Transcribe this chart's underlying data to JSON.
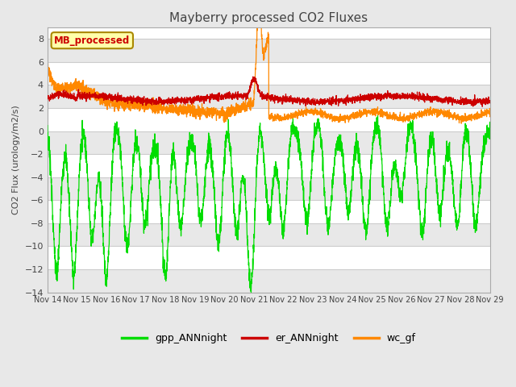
{
  "title": "Mayberry processed CO2 Fluxes",
  "ylabel": "CO2 Flux (urology/m2/s)",
  "ylim": [
    -14,
    9
  ],
  "yticks": [
    -14,
    -12,
    -10,
    -8,
    -6,
    -4,
    -2,
    0,
    2,
    4,
    6,
    8
  ],
  "x_tick_labels": [
    "Nov 14",
    "Nov 15",
    "Nov 16",
    "Nov 17",
    "Nov 18",
    "Nov 19",
    "Nov 20",
    "Nov 21",
    "Nov 22",
    "Nov 23",
    "Nov 24",
    "Nov 25",
    "Nov 26",
    "Nov 27",
    "Nov 28",
    "Nov 29"
  ],
  "colors": {
    "gpp": "#00dd00",
    "er": "#cc0000",
    "wc": "#ff8800"
  },
  "legend_text": {
    "gpp": "gpp_ANNnight",
    "er": "er_ANNnight",
    "wc": "wc_gf"
  },
  "annotation_text": "MB_processed",
  "annotation_color": "#cc0000",
  "annotation_bg": "#ffffaa",
  "annotation_border": "#aa8800",
  "background_color": "#e8e8e8",
  "plot_bg": "#ffffff",
  "grid_color": "#cccccc",
  "n_points": 3000,
  "seed": 42
}
